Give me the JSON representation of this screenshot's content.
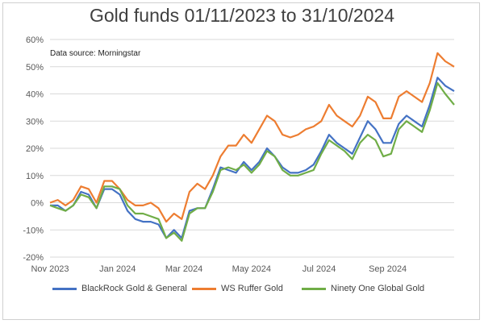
{
  "chart_data": {
    "type": "line",
    "title": "Gold funds 01/11/2023 to 31/10/2024",
    "annotation": "Data source: Morningstar",
    "xlabel": "",
    "ylabel": "",
    "x_ticks": [
      "Nov 2023",
      "Jan 2024",
      "Mar 2024",
      "May 2024",
      "Jul 2024",
      "Sep 2024"
    ],
    "y_ticks": [
      "-20%",
      "-10%",
      "0%",
      "10%",
      "20%",
      "30%",
      "40%",
      "50%",
      "60%"
    ],
    "ylim": [
      -20,
      60
    ],
    "grid": "horizontal",
    "legend_position": "bottom",
    "x": [
      "2023-11-01",
      "2023-11-08",
      "2023-11-15",
      "2023-11-22",
      "2023-11-29",
      "2023-12-06",
      "2023-12-13",
      "2023-12-20",
      "2023-12-27",
      "2024-01-03",
      "2024-01-10",
      "2024-01-17",
      "2024-01-24",
      "2024-01-31",
      "2024-02-07",
      "2024-02-14",
      "2024-02-21",
      "2024-02-28",
      "2024-03-06",
      "2024-03-13",
      "2024-03-20",
      "2024-03-27",
      "2024-04-03",
      "2024-04-10",
      "2024-04-17",
      "2024-04-24",
      "2024-05-01",
      "2024-05-08",
      "2024-05-15",
      "2024-05-22",
      "2024-05-29",
      "2024-06-05",
      "2024-06-12",
      "2024-06-19",
      "2024-06-26",
      "2024-07-03",
      "2024-07-10",
      "2024-07-17",
      "2024-07-24",
      "2024-07-31",
      "2024-08-07",
      "2024-08-14",
      "2024-08-21",
      "2024-08-28",
      "2024-09-04",
      "2024-09-11",
      "2024-09-18",
      "2024-09-25",
      "2024-10-02",
      "2024-10-09",
      "2024-10-16",
      "2024-10-23",
      "2024-10-31"
    ],
    "series": [
      {
        "name": "BlackRock Gold & General",
        "color": "#4472C4",
        "values": [
          -1,
          -1,
          -3,
          -1,
          4,
          3,
          -2,
          5,
          5,
          3,
          -3,
          -6,
          -7,
          -7,
          -8,
          -13,
          -10,
          -13,
          -3,
          -2,
          -2,
          5,
          13,
          12,
          11,
          15,
          12,
          15,
          20,
          17,
          13,
          11,
          11,
          12,
          14,
          19,
          25,
          22,
          20,
          18,
          24,
          30,
          27,
          22,
          22,
          29,
          32,
          30,
          28,
          36,
          46,
          43,
          41
        ]
      },
      {
        "name": "WS Ruffer Gold",
        "color": "#ED7D31",
        "values": [
          0,
          1,
          -1,
          1,
          6,
          5,
          0,
          8,
          8,
          5,
          1,
          -1,
          -1,
          0,
          -2,
          -7,
          -4,
          -6,
          4,
          7,
          5,
          10,
          17,
          21,
          21,
          25,
          22,
          27,
          32,
          30,
          25,
          24,
          25,
          27,
          28,
          30,
          36,
          32,
          30,
          28,
          32,
          39,
          37,
          31,
          31,
          39,
          41,
          39,
          37,
          44,
          55,
          52,
          50
        ]
      },
      {
        "name": "Ninety One Global Gold",
        "color": "#70AD47",
        "values": [
          -1,
          -2,
          -3,
          -1,
          3,
          2,
          -2,
          6,
          6,
          5,
          -1,
          -4,
          -4,
          -5,
          -6,
          -13,
          -11,
          -14,
          -4,
          -2,
          -2,
          4,
          12,
          13,
          12,
          14,
          11,
          14,
          19,
          17,
          12,
          10,
          10,
          11,
          12,
          18,
          23,
          21,
          19,
          16,
          22,
          25,
          23,
          17,
          18,
          27,
          30,
          28,
          26,
          34,
          44,
          40,
          36
        ]
      }
    ]
  }
}
